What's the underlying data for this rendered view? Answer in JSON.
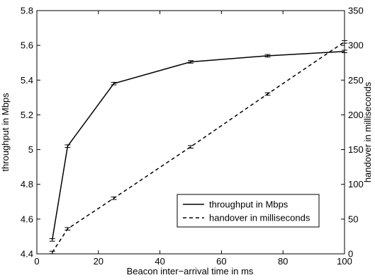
{
  "chart_data": {
    "type": "line",
    "xlabel": "Beacon inter−arrival time in ms",
    "ylabel": "throughput in Mbps",
    "ylabel_right": "handover in milliseconds",
    "xlim": [
      0,
      100
    ],
    "ylim": [
      4.4,
      5.8
    ],
    "ylim_right": [
      0,
      350
    ],
    "x_ticks": [
      "0",
      "20",
      "40",
      "60",
      "80",
      "100"
    ],
    "y_ticks": [
      "4.4",
      "4.6",
      "4.8",
      "5",
      "5.2",
      "5.4",
      "5.6",
      "5.8"
    ],
    "y_ticks_right": [
      "0",
      "50",
      "100",
      "150",
      "200",
      "250",
      "300",
      "350"
    ],
    "grid": false,
    "legend_position": "center-right",
    "series": [
      {
        "name": "throughput in Mbps",
        "axis": "left",
        "line_style": "solid",
        "color": "#000000",
        "error_bars": true,
        "x": [
          5,
          10,
          25,
          50,
          75,
          100
        ],
        "y": [
          4.48,
          5.02,
          5.38,
          5.505,
          5.54,
          5.565
        ]
      },
      {
        "name": "handover in milliseconds",
        "axis": "right",
        "line_style": "dashed",
        "color": "#000000",
        "error_bars": true,
        "x": [
          5,
          10,
          25,
          50,
          75,
          100
        ],
        "y": [
          2,
          36,
          80,
          154,
          230,
          305
        ]
      }
    ]
  }
}
